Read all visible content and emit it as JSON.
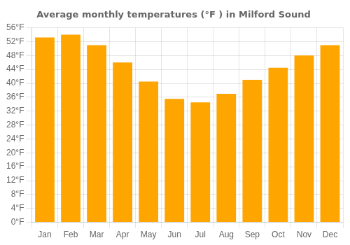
{
  "chart_data": {
    "type": "bar",
    "title": "Average monthly temperatures (°F ) in Milford Sound",
    "categories": [
      "Jan",
      "Feb",
      "Mar",
      "Apr",
      "May",
      "Jun",
      "Jul",
      "Aug",
      "Sep",
      "Oct",
      "Nov",
      "Dec"
    ],
    "values": [
      53.2,
      54.0,
      51.0,
      46.0,
      40.5,
      35.5,
      34.5,
      37.0,
      41.0,
      44.5,
      48.0,
      51.0
    ],
    "color": "#FFA500",
    "ylim": [
      0,
      56
    ],
    "yticks": [
      {
        "value": 0,
        "label": "0°F"
      },
      {
        "value": 4,
        "label": "4°F"
      },
      {
        "value": 8,
        "label": "8°F"
      },
      {
        "value": 12,
        "label": "12°F"
      },
      {
        "value": 16,
        "label": "16°F"
      },
      {
        "value": 20,
        "label": "20°F"
      },
      {
        "value": 24,
        "label": "24°F"
      },
      {
        "value": 28,
        "label": "28°F"
      },
      {
        "value": 32,
        "label": "32°F"
      },
      {
        "value": 36,
        "label": "36°F"
      },
      {
        "value": 40,
        "label": "40°F"
      },
      {
        "value": 44,
        "label": "44°F"
      },
      {
        "value": 48,
        "label": "48°F"
      },
      {
        "value": 52,
        "label": "52°F"
      },
      {
        "value": 56,
        "label": "56°F"
      }
    ],
    "grid": true
  }
}
